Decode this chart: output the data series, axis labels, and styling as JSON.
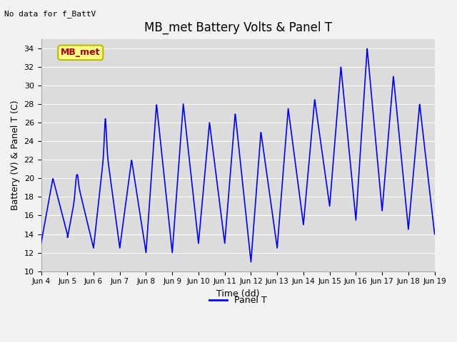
{
  "title": "MB_met Battery Volts & Panel T",
  "no_data_label": "No data for f_BattV",
  "ylabel": "Battery (V) & Panel T (C)",
  "xlabel": "Time (dd)",
  "legend_label": "Panel T",
  "legend_color": "#0000ff",
  "series_color": "#0000ff",
  "bg_color": "#dcdcdc",
  "ylim": [
    10,
    35
  ],
  "yticks": [
    10,
    12,
    14,
    16,
    18,
    20,
    22,
    24,
    26,
    28,
    30,
    32,
    34
  ],
  "xtick_labels": [
    "Jun 4",
    "Jun 5",
    "Jun 6",
    "Jun 7",
    "Jun 8",
    "Jun 9",
    "Jun 10",
    "Jun 11",
    "Jun 12",
    "Jun 13",
    "Jun 14",
    "Jun 15",
    "Jun 16",
    "Jun 17",
    "Jun 18",
    "Jun 19"
  ],
  "mb_met_label": "MB_met",
  "mb_met_label_color": "#aa0000",
  "mb_met_box_color": "#ffff88",
  "mb_met_box_edge": "#bbbb00",
  "grid_color": "#ffffff",
  "figsize": [
    6.4,
    4.8
  ],
  "dpi": 100,
  "title_fontsize": 12,
  "label_fontsize": 9,
  "tick_fontsize": 8,
  "line_width": 1.2
}
